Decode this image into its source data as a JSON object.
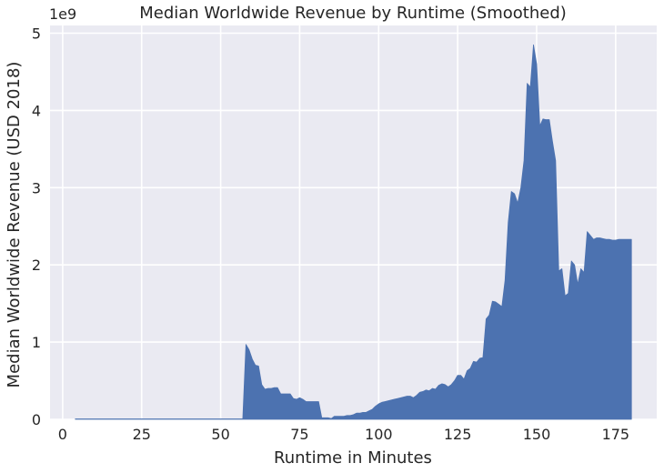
{
  "chart_data": {
    "type": "area",
    "title": "Median Worldwide Revenue by Runtime (Smoothed)",
    "xlabel": "Runtime in Minutes",
    "ylabel": "Median Worldwide Revenue (USD 2018)",
    "offset_label": "1e9",
    "xlim": [
      -4,
      188
    ],
    "ylim": [
      0,
      5.1
    ],
    "xticks": [
      0,
      25,
      50,
      75,
      100,
      125,
      150,
      175
    ],
    "yticks": [
      0,
      1,
      2,
      3,
      4,
      5
    ],
    "grid": true,
    "fill_color": "#4c72b0",
    "background_color": "#eaeaf2",
    "grid_color": "#ffffff",
    "series": [
      {
        "x": [
          4,
          56,
          57,
          58,
          59,
          60,
          61,
          62,
          63,
          64,
          65,
          66,
          67,
          68,
          69,
          70,
          71,
          72,
          73,
          74,
          75,
          76,
          77,
          78,
          79,
          80,
          81,
          82,
          83,
          84,
          85,
          86,
          87,
          88,
          89,
          90,
          91,
          92,
          93,
          94,
          95,
          96,
          97,
          98,
          99,
          100,
          101,
          102,
          103,
          104,
          105,
          106,
          107,
          108,
          109,
          110,
          111,
          112,
          113,
          114,
          115,
          116,
          117,
          118,
          119,
          120,
          121,
          122,
          123,
          124,
          125,
          126,
          127,
          128,
          129,
          130,
          131,
          132,
          133,
          134,
          135,
          136,
          137,
          138,
          139,
          140,
          141,
          142,
          143,
          144,
          145,
          146,
          147,
          148,
          149,
          150,
          151,
          152,
          153,
          154,
          155,
          156,
          157,
          158,
          159,
          160,
          161,
          162,
          163,
          164,
          165,
          166,
          167,
          168,
          169,
          170,
          171,
          172,
          173,
          174,
          175,
          176,
          177,
          178,
          179,
          180
        ],
        "y": [
          0.005,
          0.005,
          0.005,
          0.97,
          0.9,
          0.78,
          0.7,
          0.69,
          0.45,
          0.39,
          0.4,
          0.4,
          0.41,
          0.41,
          0.33,
          0.33,
          0.33,
          0.33,
          0.27,
          0.26,
          0.28,
          0.26,
          0.23,
          0.23,
          0.23,
          0.23,
          0.23,
          0.02,
          0.02,
          0.02,
          0.01,
          0.04,
          0.04,
          0.04,
          0.04,
          0.05,
          0.05,
          0.06,
          0.08,
          0.08,
          0.09,
          0.09,
          0.11,
          0.13,
          0.17,
          0.2,
          0.22,
          0.23,
          0.24,
          0.25,
          0.26,
          0.27,
          0.28,
          0.29,
          0.3,
          0.3,
          0.28,
          0.31,
          0.35,
          0.36,
          0.38,
          0.37,
          0.4,
          0.39,
          0.44,
          0.46,
          0.45,
          0.42,
          0.45,
          0.5,
          0.57,
          0.57,
          0.52,
          0.63,
          0.66,
          0.75,
          0.74,
          0.79,
          0.8,
          1.3,
          1.35,
          1.53,
          1.52,
          1.49,
          1.46,
          1.8,
          2.55,
          2.95,
          2.92,
          2.8,
          3.0,
          3.35,
          4.35,
          4.3,
          4.85,
          4.6,
          3.8,
          3.89,
          3.88,
          3.88,
          3.6,
          3.35,
          1.92,
          1.95,
          1.6,
          1.63,
          2.05,
          2.0,
          1.75,
          1.95,
          1.9,
          2.43,
          2.38,
          2.33,
          2.35,
          2.35,
          2.34,
          2.33,
          2.33,
          2.32,
          2.32,
          2.33,
          2.33,
          2.33,
          2.33,
          2.33
        ]
      }
    ]
  }
}
